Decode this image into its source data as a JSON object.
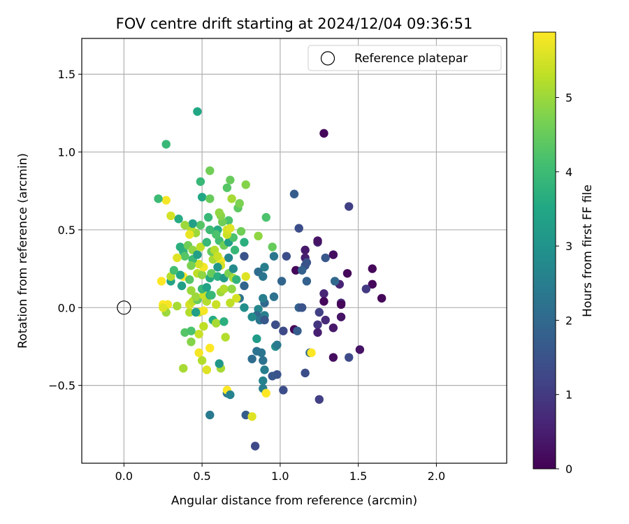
{
  "chart_data": {
    "type": "scatter",
    "title": "FOV centre drift starting at 2024/12/04 09:36:51",
    "xlabel": "Angular distance from reference (arcmin)",
    "ylabel": "Rotation from reference (arcmin)",
    "xlim": [
      -0.27,
      2.45
    ],
    "ylim": [
      -1.0,
      1.73
    ],
    "xticks": [
      0.0,
      0.5,
      1.0,
      1.5,
      2.0
    ],
    "xtick_labels": [
      "0.0",
      "0.5",
      "1.0",
      "1.5",
      "2.0"
    ],
    "yticks": [
      -0.5,
      0.0,
      0.5,
      1.0,
      1.5
    ],
    "ytick_labels": [
      "−0.5",
      "0.0",
      "0.5",
      "1.0",
      "1.5"
    ],
    "grid": true,
    "legend": {
      "position": "upper-right",
      "entries": [
        "Reference platepar"
      ]
    },
    "reference_point": {
      "x": 0.0,
      "y": 0.0,
      "marker": "open-circle"
    },
    "colorbar": {
      "label": "Hours from first FF file",
      "colormap": "viridis",
      "range": [
        0,
        5.88
      ],
      "ticks": [
        0,
        1,
        2,
        3,
        4,
        5
      ],
      "tick_labels": [
        "0",
        "1",
        "2",
        "3",
        "4",
        "5"
      ]
    },
    "points": [
      {
        "x": 1.28,
        "y": 1.12,
        "t": 0.1
      },
      {
        "x": 1.44,
        "y": 0.65,
        "t": 1.1
      },
      {
        "x": 1.09,
        "y": 0.73,
        "t": 1.7
      },
      {
        "x": 1.12,
        "y": 0.51,
        "t": 1.4
      },
      {
        "x": 1.24,
        "y": 0.42,
        "t": 0.6
      },
      {
        "x": 1.24,
        "y": 0.43,
        "t": 0.3
      },
      {
        "x": 1.16,
        "y": 0.37,
        "t": 0.4
      },
      {
        "x": 1.16,
        "y": 0.32,
        "t": 0.5
      },
      {
        "x": 1.29,
        "y": 0.32,
        "t": 1.6
      },
      {
        "x": 1.34,
        "y": 0.34,
        "t": 0.2
      },
      {
        "x": 1.16,
        "y": 0.27,
        "t": 1.5
      },
      {
        "x": 1.1,
        "y": 0.24,
        "t": 0.1
      },
      {
        "x": 1.14,
        "y": 0.24,
        "t": 1.8
      },
      {
        "x": 1.17,
        "y": 0.29,
        "t": 1.5
      },
      {
        "x": 1.04,
        "y": 0.33,
        "t": 1.4
      },
      {
        "x": 0.96,
        "y": 0.33,
        "t": 2.3
      },
      {
        "x": 1.43,
        "y": 0.22,
        "t": 0.1
      },
      {
        "x": 1.59,
        "y": 0.25,
        "t": 0.1
      },
      {
        "x": 1.59,
        "y": 0.15,
        "t": 0.1
      },
      {
        "x": 1.55,
        "y": 0.12,
        "t": 1.0
      },
      {
        "x": 1.38,
        "y": 0.15,
        "t": 0.6
      },
      {
        "x": 1.35,
        "y": 0.17,
        "t": 2.0
      },
      {
        "x": 1.17,
        "y": 0.17,
        "t": 1.8
      },
      {
        "x": 1.28,
        "y": 0.09,
        "t": 0.6
      },
      {
        "x": 1.28,
        "y": 0.04,
        "t": 0.1
      },
      {
        "x": 1.39,
        "y": 0.03,
        "t": 0.7
      },
      {
        "x": 1.39,
        "y": 0.02,
        "t": 0.1
      },
      {
        "x": 1.65,
        "y": 0.06,
        "t": 0.1
      },
      {
        "x": 1.12,
        "y": 0.0,
        "t": 1.8
      },
      {
        "x": 1.14,
        "y": 0.0,
        "t": 1.5
      },
      {
        "x": 1.25,
        "y": -0.03,
        "t": 1.1
      },
      {
        "x": 1.39,
        "y": -0.06,
        "t": 0.3
      },
      {
        "x": 1.29,
        "y": -0.08,
        "t": 0.7
      },
      {
        "x": 1.24,
        "y": -0.11,
        "t": 0.9
      },
      {
        "x": 1.34,
        "y": -0.13,
        "t": 0.4
      },
      {
        "x": 1.24,
        "y": -0.16,
        "t": 0.5
      },
      {
        "x": 1.09,
        "y": -0.14,
        "t": 0.1
      },
      {
        "x": 1.11,
        "y": -0.15,
        "t": 1.7
      },
      {
        "x": 1.02,
        "y": -0.15,
        "t": 1.3
      },
      {
        "x": 0.97,
        "y": -0.11,
        "t": 1.4
      },
      {
        "x": 1.51,
        "y": -0.27,
        "t": 0.3
      },
      {
        "x": 1.44,
        "y": -0.32,
        "t": 1.3
      },
      {
        "x": 1.34,
        "y": -0.32,
        "t": 0.2
      },
      {
        "x": 1.19,
        "y": -0.29,
        "t": 2.0
      },
      {
        "x": 1.16,
        "y": -0.42,
        "t": 1.4
      },
      {
        "x": 1.25,
        "y": -0.59,
        "t": 1.1
      },
      {
        "x": 1.02,
        "y": -0.53,
        "t": 1.4
      },
      {
        "x": 0.98,
        "y": -0.43,
        "t": 1.5
      },
      {
        "x": 0.95,
        "y": -0.44,
        "t": 1.6
      },
      {
        "x": 0.9,
        "y": -0.4,
        "t": 2.5
      },
      {
        "x": 0.89,
        "y": -0.34,
        "t": 2.2
      },
      {
        "x": 0.89,
        "y": -0.47,
        "t": 2.6
      },
      {
        "x": 0.89,
        "y": -0.52,
        "t": 2.5
      },
      {
        "x": 0.88,
        "y": -0.29,
        "t": 2.3
      },
      {
        "x": 0.85,
        "y": -0.28,
        "t": 2.2
      },
      {
        "x": 0.82,
        "y": -0.33,
        "t": 2.1
      },
      {
        "x": 0.85,
        "y": -0.2,
        "t": 3.2
      },
      {
        "x": 0.97,
        "y": -0.25,
        "t": 2.9
      },
      {
        "x": 0.98,
        "y": -0.24,
        "t": 2.4
      },
      {
        "x": 0.96,
        "y": 0.07,
        "t": 2.2
      },
      {
        "x": 1.01,
        "y": 0.17,
        "t": 1.9
      },
      {
        "x": 0.9,
        "y": 0.03,
        "t": 2.0
      },
      {
        "x": 0.89,
        "y": 0.06,
        "t": 2.5
      },
      {
        "x": 0.86,
        "y": -0.01,
        "t": 2.7
      },
      {
        "x": 0.9,
        "y": -0.05,
        "t": 2.5
      },
      {
        "x": 0.85,
        "y": -0.05,
        "t": 2.0
      },
      {
        "x": 0.87,
        "y": -0.08,
        "t": 2.3
      },
      {
        "x": 0.9,
        "y": -0.08,
        "t": 1.6
      },
      {
        "x": 0.82,
        "y": -0.06,
        "t": 2.8
      },
      {
        "x": 0.77,
        "y": 0.0,
        "t": 2.9
      },
      {
        "x": 0.74,
        "y": 0.06,
        "t": 2.2
      },
      {
        "x": 0.77,
        "y": 0.14,
        "t": 1.9
      },
      {
        "x": 0.86,
        "y": 0.23,
        "t": 2.1
      },
      {
        "x": 0.89,
        "y": 0.2,
        "t": 2.3
      },
      {
        "x": 0.9,
        "y": 0.26,
        "t": 2.5
      },
      {
        "x": 0.77,
        "y": 0.33,
        "t": 1.5
      },
      {
        "x": 0.84,
        "y": -0.89,
        "t": 1.3
      },
      {
        "x": 0.78,
        "y": -0.69,
        "t": 1.7
      },
      {
        "x": 0.82,
        "y": -0.7,
        "t": 5.6
      },
      {
        "x": 0.91,
        "y": -0.55,
        "t": 5.9
      },
      {
        "x": 1.2,
        "y": -0.29,
        "t": 5.9
      },
      {
        "x": 0.55,
        "y": -0.69,
        "t": 2.4
      },
      {
        "x": 0.66,
        "y": -0.55,
        "t": 2.3
      },
      {
        "x": 0.66,
        "y": -0.53,
        "t": 5.9
      },
      {
        "x": 0.68,
        "y": -0.56,
        "t": 2.6
      },
      {
        "x": 0.62,
        "y": -0.39,
        "t": 5.1
      },
      {
        "x": 0.61,
        "y": -0.36,
        "t": 3.1
      },
      {
        "x": 0.53,
        "y": -0.4,
        "t": 5.6
      },
      {
        "x": 0.5,
        "y": -0.34,
        "t": 5.2
      },
      {
        "x": 0.48,
        "y": -0.29,
        "t": 5.8
      },
      {
        "x": 0.55,
        "y": -0.26,
        "t": 5.9
      },
      {
        "x": 0.65,
        "y": -0.19,
        "t": 5.2
      },
      {
        "x": 0.48,
        "y": -0.17,
        "t": 5.4
      },
      {
        "x": 0.51,
        "y": -0.12,
        "t": 5.3
      },
      {
        "x": 0.57,
        "y": -0.08,
        "t": 3.6
      },
      {
        "x": 0.59,
        "y": -0.1,
        "t": 5.1
      },
      {
        "x": 0.64,
        "y": -0.09,
        "t": 3.7
      },
      {
        "x": 0.38,
        "y": -0.39,
        "t": 5.1
      },
      {
        "x": 0.43,
        "y": -0.22,
        "t": 4.8
      },
      {
        "x": 0.39,
        "y": -0.16,
        "t": 4.3
      },
      {
        "x": 0.43,
        "y": -0.15,
        "t": 4.2
      },
      {
        "x": 0.48,
        "y": -0.03,
        "t": 5.4
      },
      {
        "x": 0.51,
        "y": -0.02,
        "t": 5.8
      },
      {
        "x": 0.42,
        "y": -0.03,
        "t": 5.2
      },
      {
        "x": 0.42,
        "y": 0.02,
        "t": 5.5
      },
      {
        "x": 0.34,
        "y": 0.01,
        "t": 5.1
      },
      {
        "x": 0.28,
        "y": 0.02,
        "t": 5.8
      },
      {
        "x": 0.25,
        "y": 0.02,
        "t": 5.9
      },
      {
        "x": 0.27,
        "y": -0.03,
        "t": 5.0
      },
      {
        "x": 0.44,
        "y": 0.04,
        "t": 5.3
      },
      {
        "x": 0.47,
        "y": 0.05,
        "t": 4.5
      },
      {
        "x": 0.53,
        "y": 0.04,
        "t": 5.2
      },
      {
        "x": 0.46,
        "y": 0.07,
        "t": 5.0
      },
      {
        "x": 0.51,
        "y": 0.08,
        "t": 5.4
      },
      {
        "x": 0.55,
        "y": 0.08,
        "t": 3.7
      },
      {
        "x": 0.43,
        "y": 0.11,
        "t": 5.0
      },
      {
        "x": 0.5,
        "y": 0.12,
        "t": 3.9
      },
      {
        "x": 0.53,
        "y": 0.13,
        "t": 3.4
      },
      {
        "x": 0.62,
        "y": 0.1,
        "t": 5.0
      },
      {
        "x": 0.64,
        "y": 0.12,
        "t": 5.2
      },
      {
        "x": 0.69,
        "y": 0.12,
        "t": 4.9
      },
      {
        "x": 0.72,
        "y": 0.06,
        "t": 5.5
      },
      {
        "x": 0.68,
        "y": 0.03,
        "t": 5.3
      },
      {
        "x": 0.24,
        "y": 0.17,
        "t": 5.9
      },
      {
        "x": 0.3,
        "y": 0.17,
        "t": 3.4
      },
      {
        "x": 0.3,
        "y": 0.2,
        "t": 5.2
      },
      {
        "x": 0.37,
        "y": 0.14,
        "t": 3.3
      },
      {
        "x": 0.38,
        "y": 0.2,
        "t": 5.9
      },
      {
        "x": 0.42,
        "y": 0.18,
        "t": 4.3
      },
      {
        "x": 0.47,
        "y": 0.22,
        "t": 5.3
      },
      {
        "x": 0.5,
        "y": 0.21,
        "t": 4.9
      },
      {
        "x": 0.55,
        "y": 0.19,
        "t": 3.6
      },
      {
        "x": 0.56,
        "y": 0.22,
        "t": 4.5
      },
      {
        "x": 0.6,
        "y": 0.2,
        "t": 3.7
      },
      {
        "x": 0.64,
        "y": 0.19,
        "t": 3.2
      },
      {
        "x": 0.67,
        "y": 0.22,
        "t": 4.7
      },
      {
        "x": 0.7,
        "y": 0.19,
        "t": 5.1
      },
      {
        "x": 0.72,
        "y": 0.18,
        "t": 3.8
      },
      {
        "x": 0.7,
        "y": 0.25,
        "t": 2.8
      },
      {
        "x": 0.78,
        "y": 0.2,
        "t": 5.6
      },
      {
        "x": 0.67,
        "y": 0.32,
        "t": 2.7
      },
      {
        "x": 0.62,
        "y": 0.3,
        "t": 5.8
      },
      {
        "x": 0.57,
        "y": 0.31,
        "t": 5.1
      },
      {
        "x": 0.51,
        "y": 0.26,
        "t": 5.8
      },
      {
        "x": 0.48,
        "y": 0.28,
        "t": 5.5
      },
      {
        "x": 0.44,
        "y": 0.31,
        "t": 4.0
      },
      {
        "x": 0.43,
        "y": 0.27,
        "t": 4.7
      },
      {
        "x": 0.38,
        "y": 0.36,
        "t": 3.8
      },
      {
        "x": 0.39,
        "y": 0.33,
        "t": 4.3
      },
      {
        "x": 0.34,
        "y": 0.32,
        "t": 5.6
      },
      {
        "x": 0.36,
        "y": 0.39,
        "t": 3.7
      },
      {
        "x": 0.41,
        "y": 0.4,
        "t": 4.6
      },
      {
        "x": 0.44,
        "y": 0.37,
        "t": 4.9
      },
      {
        "x": 0.47,
        "y": 0.34,
        "t": 3.3
      },
      {
        "x": 0.49,
        "y": 0.39,
        "t": 5.3
      },
      {
        "x": 0.53,
        "y": 0.42,
        "t": 3.9
      },
      {
        "x": 0.56,
        "y": 0.36,
        "t": 4.5
      },
      {
        "x": 0.58,
        "y": 0.37,
        "t": 5.2
      },
      {
        "x": 0.6,
        "y": 0.33,
        "t": 5.4
      },
      {
        "x": 0.62,
        "y": 0.27,
        "t": 5.5
      },
      {
        "x": 0.61,
        "y": 0.43,
        "t": 4.1
      },
      {
        "x": 0.64,
        "y": 0.4,
        "t": 4.6
      },
      {
        "x": 0.67,
        "y": 0.42,
        "t": 3.3
      },
      {
        "x": 0.71,
        "y": 0.37,
        "t": 3.9
      },
      {
        "x": 0.7,
        "y": 0.45,
        "t": 4.2
      },
      {
        "x": 0.77,
        "y": 0.42,
        "t": 3.7
      },
      {
        "x": 0.75,
        "y": 0.49,
        "t": 4.6
      },
      {
        "x": 0.86,
        "y": 0.46,
        "t": 4.9
      },
      {
        "x": 0.95,
        "y": 0.39,
        "t": 4.5
      },
      {
        "x": 0.91,
        "y": 0.58,
        "t": 4.2
      },
      {
        "x": 0.73,
        "y": 0.64,
        "t": 4.4
      },
      {
        "x": 0.74,
        "y": 0.67,
        "t": 4.7
      },
      {
        "x": 0.69,
        "y": 0.7,
        "t": 5.1
      },
      {
        "x": 0.67,
        "y": 0.56,
        "t": 4.2
      },
      {
        "x": 0.66,
        "y": 0.47,
        "t": 5.4
      },
      {
        "x": 0.66,
        "y": 0.5,
        "t": 5.5
      },
      {
        "x": 0.68,
        "y": 0.51,
        "t": 5.6
      },
      {
        "x": 0.63,
        "y": 0.55,
        "t": 4.6
      },
      {
        "x": 0.62,
        "y": 0.59,
        "t": 4.8
      },
      {
        "x": 0.61,
        "y": 0.61,
        "t": 4.9
      },
      {
        "x": 0.6,
        "y": 0.5,
        "t": 3.6
      },
      {
        "x": 0.59,
        "y": 0.47,
        "t": 4.2
      },
      {
        "x": 0.55,
        "y": 0.5,
        "t": 4.0
      },
      {
        "x": 0.54,
        "y": 0.58,
        "t": 3.9
      },
      {
        "x": 0.49,
        "y": 0.53,
        "t": 4.3
      },
      {
        "x": 0.46,
        "y": 0.48,
        "t": 5.0
      },
      {
        "x": 0.43,
        "y": 0.51,
        "t": 5.2
      },
      {
        "x": 0.42,
        "y": 0.47,
        "t": 5.7
      },
      {
        "x": 0.44,
        "y": 0.54,
        "t": 3.3
      },
      {
        "x": 0.39,
        "y": 0.53,
        "t": 5.0
      },
      {
        "x": 0.35,
        "y": 0.57,
        "t": 3.6
      },
      {
        "x": 0.3,
        "y": 0.59,
        "t": 5.5
      },
      {
        "x": 0.27,
        "y": 0.69,
        "t": 5.8
      },
      {
        "x": 0.22,
        "y": 0.7,
        "t": 4.0
      },
      {
        "x": 0.5,
        "y": 0.71,
        "t": 3.5
      },
      {
        "x": 0.55,
        "y": 0.7,
        "t": 4.5
      },
      {
        "x": 0.49,
        "y": 0.81,
        "t": 3.9
      },
      {
        "x": 0.55,
        "y": 0.88,
        "t": 4.6
      },
      {
        "x": 0.66,
        "y": 0.77,
        "t": 4.3
      },
      {
        "x": 0.68,
        "y": 0.82,
        "t": 4.5
      },
      {
        "x": 0.78,
        "y": 0.79,
        "t": 4.8
      },
      {
        "x": 0.27,
        "y": 1.05,
        "t": 3.9
      },
      {
        "x": 0.47,
        "y": 1.26,
        "t": 3.5
      },
      {
        "x": 0.36,
        "y": 0.21,
        "t": 3.5
      },
      {
        "x": 0.25,
        "y": 0.0,
        "t": 5.6
      },
      {
        "x": 0.6,
        "y": 0.26,
        "t": 3.1
      },
      {
        "x": 0.56,
        "y": 0.08,
        "t": 3.9
      },
      {
        "x": 0.59,
        "y": 0.02,
        "t": 5.4
      },
      {
        "x": 0.32,
        "y": 0.24,
        "t": 4.1
      },
      {
        "x": 0.46,
        "y": -0.03,
        "t": 3.3
      }
    ]
  }
}
